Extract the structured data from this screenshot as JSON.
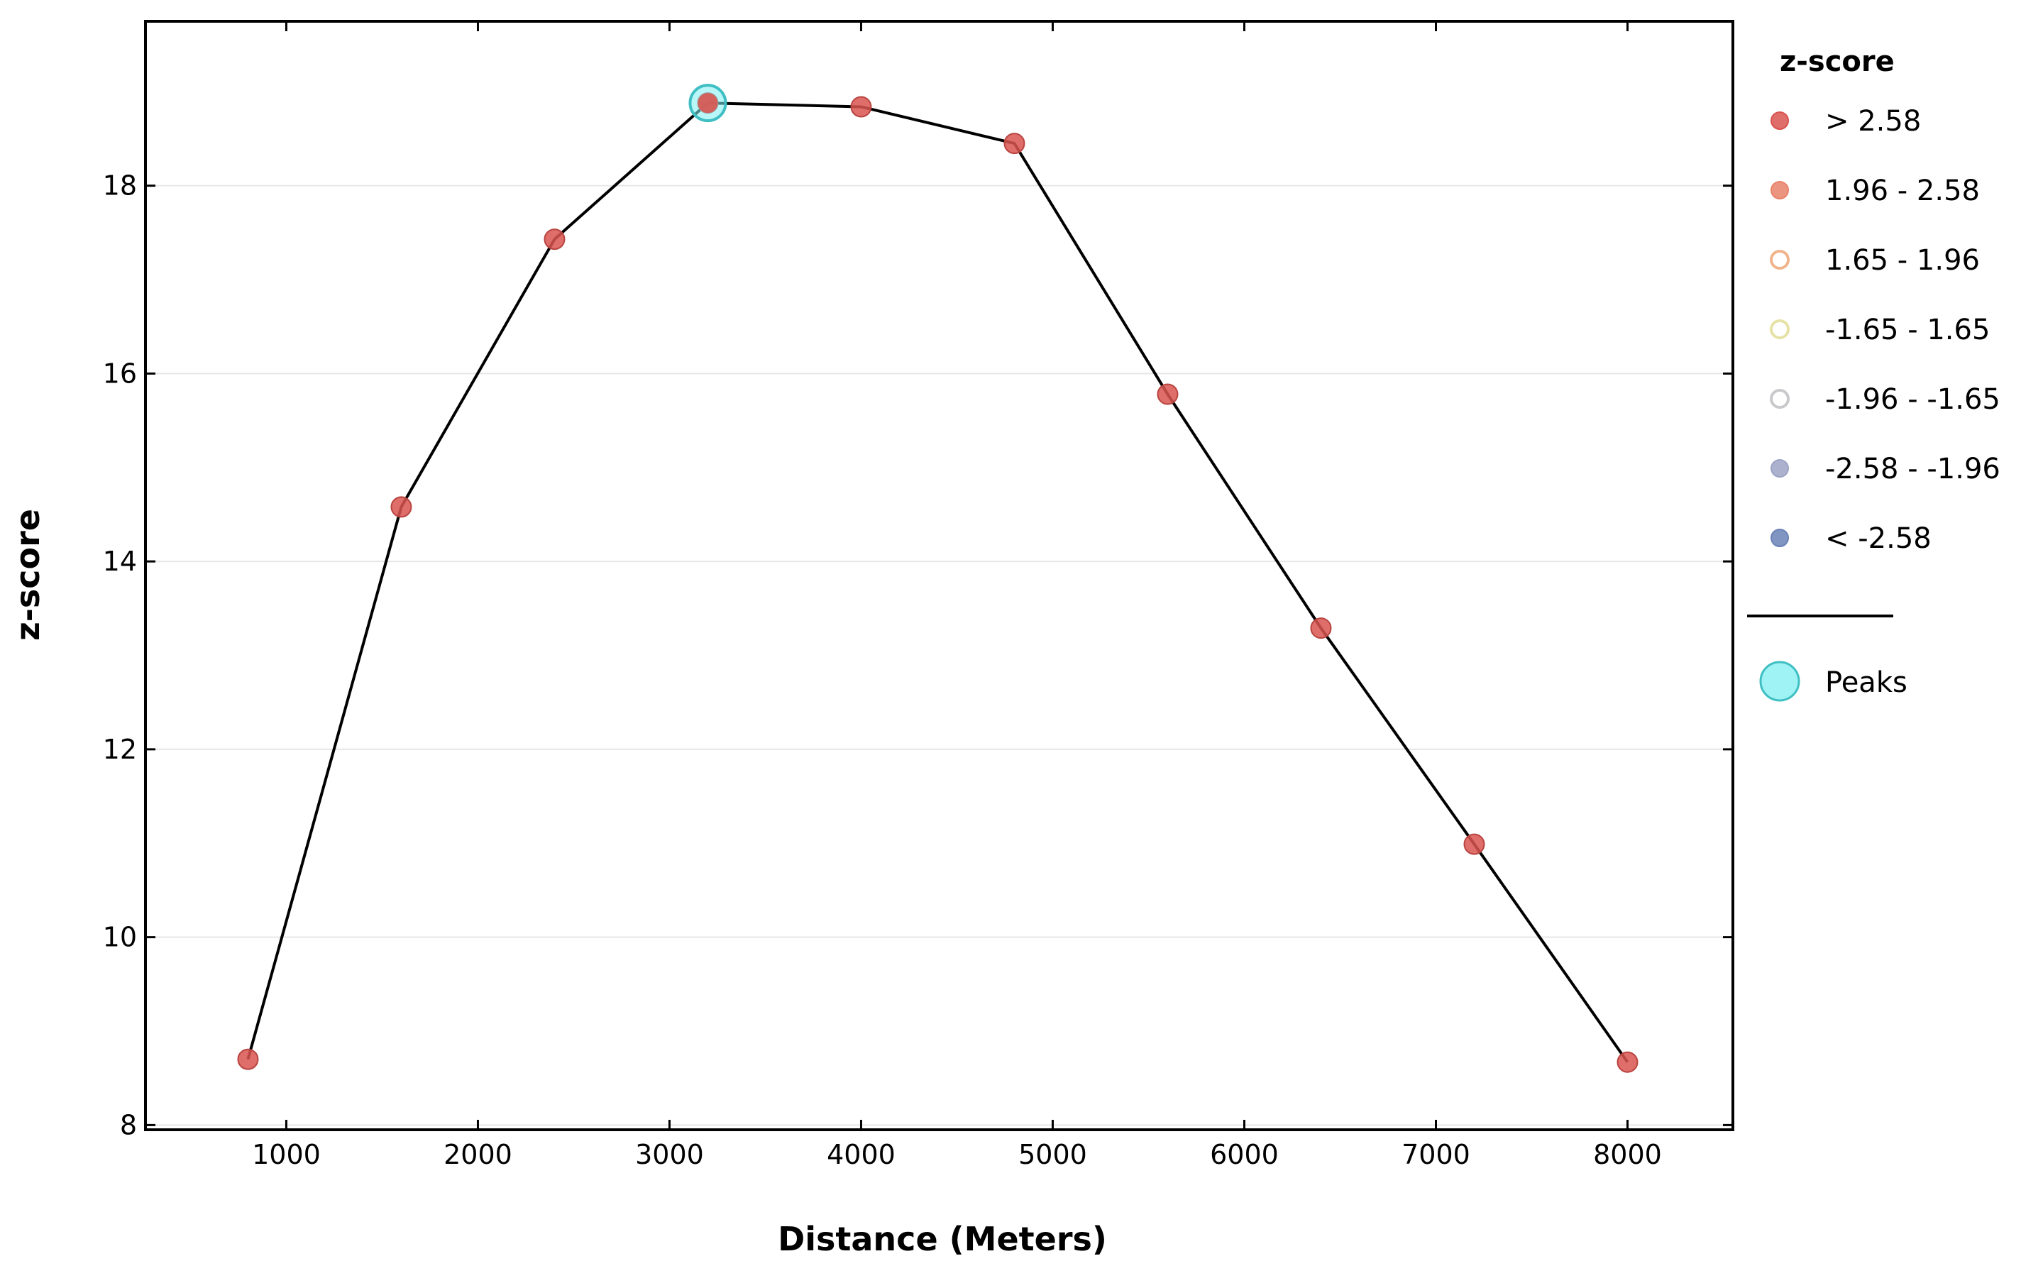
{
  "chart_data": {
    "type": "line",
    "xlabel": "Distance (Meters)",
    "ylabel": "z-score",
    "xlim": [
      265,
      8550
    ],
    "ylim": [
      7.95,
      19.75
    ],
    "xticks": [
      1000,
      2000,
      3000,
      4000,
      5000,
      6000,
      7000,
      8000
    ],
    "yticks": [
      8,
      10,
      12,
      14,
      16,
      18
    ],
    "grid": "horizontal",
    "series": [
      {
        "x": [
          800,
          1600,
          2400,
          3200,
          4000,
          4800,
          5600,
          6400,
          7200,
          8000
        ],
        "y": [
          8.7,
          14.58,
          17.43,
          18.88,
          18.84,
          18.45,
          15.78,
          13.29,
          10.99,
          8.67
        ],
        "line_color": "#000000",
        "marker_color": "#d9534f"
      }
    ],
    "peaks": [
      {
        "x": 3200,
        "y": 18.88
      }
    ],
    "legend": {
      "position": "right",
      "title": "z-score",
      "items": [
        {
          "label": "> 2.58",
          "color": "#d9534f",
          "hollow": false
        },
        {
          "label": "1.96 - 2.58",
          "color": "#e8836b",
          "hollow": false
        },
        {
          "label": "1.65 - 1.96",
          "color": "#f0b48c",
          "hollow": true
        },
        {
          "label": "-1.65 - 1.65",
          "color": "#e6e2a6",
          "hollow": true
        },
        {
          "label": "-1.96 - -1.65",
          "color": "#c9c9cc",
          "hollow": true
        },
        {
          "label": "-2.58 - -1.96",
          "color": "#9ea5c4",
          "hollow": false
        },
        {
          "label": "< -2.58",
          "color": "#6a82b6",
          "hollow": false
        }
      ],
      "peaks_label": "Peaks",
      "peaks_color": "#7feff0"
    }
  }
}
